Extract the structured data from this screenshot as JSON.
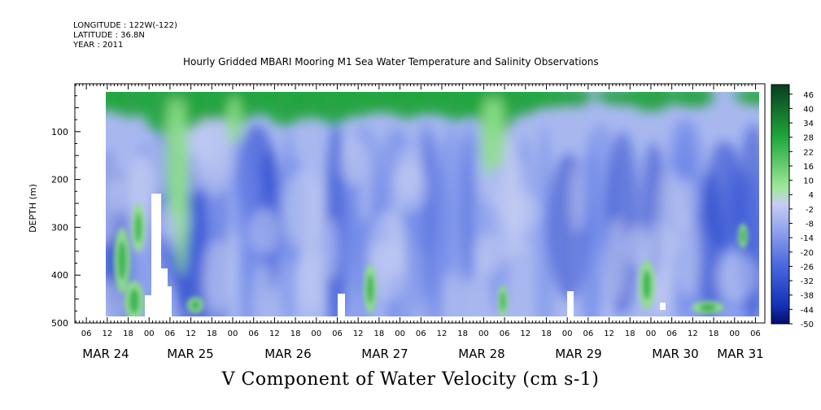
{
  "header": {
    "longitude": "LONGITUDE : 122W(-122)",
    "latitude": "LATITUDE : 36.8N",
    "year": "YEAR : 2011"
  },
  "chart_data": {
    "type": "heatmap",
    "title": "Hourly Gridded MBARI Mooring M1 Sea Water Temperature and Salinity Observations",
    "variable_label": "V Component of Water Velocity (cm s-1)",
    "ylabel": "DEPTH (m)",
    "y_ticks": [
      100,
      200,
      300,
      400,
      500
    ],
    "y_inverted": true,
    "ylim": [
      500,
      0
    ],
    "x_hour_ticks": [
      "06",
      "12",
      "18",
      "00",
      "06",
      "12",
      "18",
      "00",
      "06",
      "12",
      "18",
      "00",
      "06",
      "12",
      "18",
      "00",
      "06",
      "12",
      "18",
      "00",
      "06",
      "12",
      "18",
      "00",
      "06",
      "12",
      "18",
      "00",
      "06",
      "12",
      "18",
      "00",
      "06"
    ],
    "x_date_labels": [
      "MAR 24",
      "MAR 25",
      "MAR 26",
      "MAR 27",
      "MAR 28",
      "MAR 29",
      "MAR 30",
      "MAR 31"
    ],
    "colorbar_ticks": [
      "46",
      "40",
      "34",
      "28",
      "22",
      "16",
      "10",
      "4",
      "-2",
      "-8",
      "-14",
      "-20",
      "-26",
      "-32",
      "-38",
      "-44",
      "-50"
    ],
    "colorbar_range": [
      -50,
      50
    ],
    "colors": {
      "strong_positive": "#0a3d1e",
      "positive": "#1ea83c",
      "light_positive": "#8ee08a",
      "neutral": "#c4cdf3",
      "negative": "#6c85e8",
      "strong_negative": "#1638c8",
      "extreme_negative": "#060d6a"
    }
  }
}
